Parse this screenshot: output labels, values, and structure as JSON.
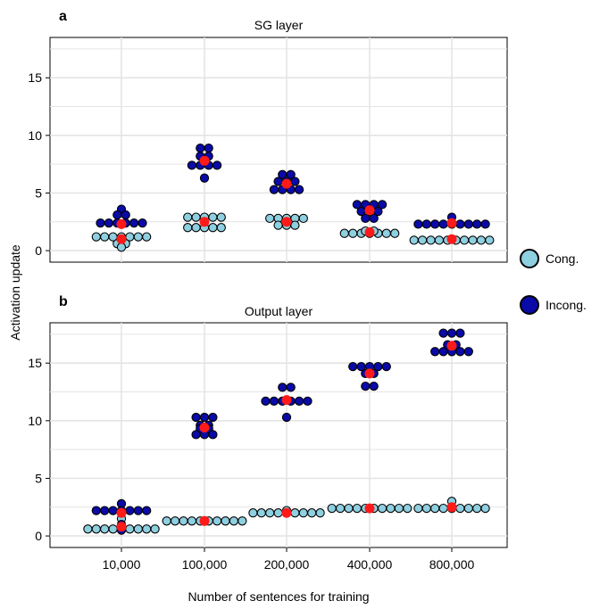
{
  "figure": {
    "y_axis_label": "Activation update",
    "x_axis_label": "Number of sentences for training",
    "legend": [
      {
        "label": "Cong.",
        "color": "#8ecfe0"
      },
      {
        "label": "Incong.",
        "color": "#0a0aa8"
      }
    ],
    "mean_marker_color": "#ff1a1a"
  },
  "chart_data": [
    {
      "type": "scatter",
      "panel_label": "a",
      "title": "SG layer",
      "categories": [
        "10,000",
        "100,000",
        "200,000",
        "400,000",
        "800,000"
      ],
      "ylim": [
        -1,
        18.5
      ],
      "yticks": [
        0,
        5,
        10,
        15
      ],
      "grid": true,
      "series": [
        {
          "name": "Cong.",
          "means": [
            1.0,
            2.5,
            2.5,
            1.6,
            1.0
          ],
          "points": [
            [
              1.2,
              1.2,
              1.2,
              1.2,
              1.2,
              1.2,
              1.2,
              0.6,
              0.6,
              0.3
            ],
            [
              2.9,
              2.9,
              2.9,
              2.9,
              2.9,
              2.0,
              2.0,
              2.0,
              2.0,
              2.0
            ],
            [
              2.8,
              2.8,
              2.8,
              2.8,
              2.8,
              2.2,
              2.2,
              2.2
            ],
            [
              1.5,
              1.5,
              1.5,
              1.5,
              1.5,
              1.5,
              1.5,
              1.7,
              1.7
            ],
            [
              0.9,
              0.9,
              0.9,
              0.9,
              0.9,
              0.9,
              0.9,
              0.9,
              0.9,
              0.9
            ]
          ]
        },
        {
          "name": "Incong.",
          "means": [
            2.3,
            7.8,
            5.8,
            3.5,
            2.4
          ],
          "points": [
            [
              3.6,
              3.1,
              3.1,
              2.4,
              2.4,
              2.4,
              2.4,
              2.4,
              2.4
            ],
            [
              8.9,
              8.9,
              8.2,
              8.2,
              7.4,
              7.4,
              7.4,
              7.4,
              6.3
            ],
            [
              6.6,
              6.6,
              6.0,
              6.0,
              6.0,
              5.3,
              5.3,
              5.3,
              5.3
            ],
            [
              4.0,
              4.0,
              4.0,
              4.0,
              3.4,
              3.4,
              3.4,
              2.8,
              2.8
            ],
            [
              2.9,
              2.3,
              2.3,
              2.3,
              2.3,
              2.3,
              2.3,
              2.3,
              2.3,
              2.3
            ]
          ]
        }
      ]
    },
    {
      "type": "scatter",
      "panel_label": "b",
      "title": "Output layer",
      "categories": [
        "10,000",
        "100,000",
        "200,000",
        "400,000",
        "800,000"
      ],
      "ylim": [
        -1,
        18.5
      ],
      "yticks": [
        0,
        5,
        10,
        15
      ],
      "grid": true,
      "series": [
        {
          "name": "Cong.",
          "means": [
            0.8,
            1.3,
            2.0,
            2.4,
            2.5
          ],
          "points": [
            [
              1.5,
              0.6,
              0.6,
              0.6,
              0.6,
              0.6,
              0.6,
              0.6,
              0.6,
              0.6
            ],
            [
              1.3,
              1.3,
              1.3,
              1.3,
              1.3,
              1.3,
              1.3,
              1.3,
              1.3,
              1.3
            ],
            [
              2.0,
              2.0,
              2.0,
              2.0,
              2.0,
              2.0,
              2.0,
              2.0,
              2.0,
              2.2
            ],
            [
              2.4,
              2.4,
              2.4,
              2.4,
              2.4,
              2.4,
              2.4,
              2.4,
              2.4,
              2.4
            ],
            [
              3.0,
              2.4,
              2.4,
              2.4,
              2.4,
              2.4,
              2.4,
              2.4,
              2.4,
              2.4
            ]
          ]
        },
        {
          "name": "Incong.",
          "means": [
            2.0,
            9.4,
            11.8,
            14.1,
            16.5
          ],
          "points": [
            [
              2.8,
              2.2,
              2.2,
              2.2,
              2.2,
              2.2,
              2.2,
              2.2,
              1.0,
              0.5
            ],
            [
              10.3,
              10.3,
              10.3,
              9.6,
              9.6,
              9.3,
              9.3,
              8.8,
              8.8,
              8.8
            ],
            [
              12.9,
              12.9,
              11.7,
              11.7,
              11.7,
              11.7,
              11.7,
              11.7,
              10.3
            ],
            [
              14.7,
              14.7,
              14.7,
              14.7,
              14.7,
              14.1,
              14.1,
              13.0,
              13.0
            ],
            [
              17.6,
              17.6,
              17.6,
              16.6,
              16.6,
              16.0,
              16.0,
              16.0,
              16.0,
              16.0
            ]
          ]
        }
      ]
    }
  ]
}
